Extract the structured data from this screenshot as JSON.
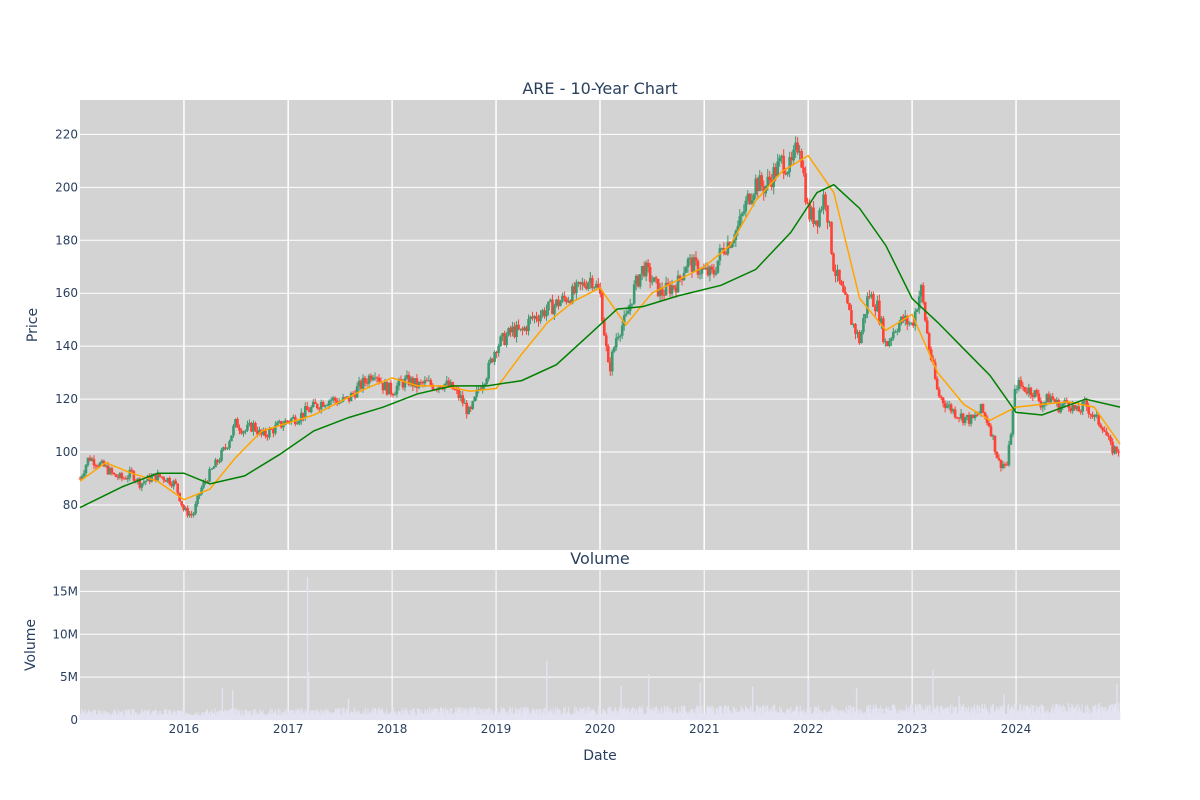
{
  "chart_data": [
    {
      "type": "candlestick",
      "title": "ARE - 10-Year Chart",
      "ylabel": "Price",
      "ylim": [
        63,
        233
      ],
      "xlim": [
        "2015-01-01",
        "2024-12-31"
      ],
      "y_ticks": [
        80,
        100,
        120,
        140,
        160,
        180,
        200,
        220
      ],
      "x_ticks": [
        "2016",
        "2017",
        "2018",
        "2019",
        "2020",
        "2021",
        "2022",
        "2023",
        "2024"
      ],
      "grid": true,
      "colors": {
        "up": "#3d9970",
        "down": "#ff4136",
        "ma_short": "#ffa500",
        "ma_long": "#008000",
        "plot_bg": "#d3d3d3",
        "grid": "#ffffff"
      },
      "close_series": {
        "x": [
          "2015-01-01",
          "2015-02-01",
          "2015-03-01",
          "2015-04-01",
          "2015-05-01",
          "2015-06-01",
          "2015-07-01",
          "2015-08-01",
          "2015-09-01",
          "2015-10-01",
          "2015-11-01",
          "2015-12-01",
          "2016-01-01",
          "2016-02-01",
          "2016-03-01",
          "2016-04-01",
          "2016-05-01",
          "2016-06-01",
          "2016-07-01",
          "2016-08-01",
          "2016-09-01",
          "2016-10-01",
          "2016-11-01",
          "2016-12-01",
          "2017-01-01",
          "2017-02-01",
          "2017-03-01",
          "2017-04-01",
          "2017-05-01",
          "2017-06-01",
          "2017-07-01",
          "2017-08-01",
          "2017-09-01",
          "2017-10-01",
          "2017-11-01",
          "2017-12-01",
          "2018-01-01",
          "2018-02-01",
          "2018-03-01",
          "2018-04-01",
          "2018-05-01",
          "2018-06-01",
          "2018-07-01",
          "2018-08-01",
          "2018-09-01",
          "2018-10-01",
          "2018-11-01",
          "2018-12-01",
          "2019-01-01",
          "2019-02-01",
          "2019-03-01",
          "2019-04-01",
          "2019-05-01",
          "2019-06-01",
          "2019-07-01",
          "2019-08-01",
          "2019-09-01",
          "2019-10-01",
          "2019-11-01",
          "2019-12-01",
          "2020-01-01",
          "2020-02-01",
          "2020-03-01",
          "2020-04-01",
          "2020-05-01",
          "2020-06-01",
          "2020-07-01",
          "2020-08-01",
          "2020-09-01",
          "2020-10-01",
          "2020-11-01",
          "2020-12-01",
          "2021-01-01",
          "2021-02-01",
          "2021-03-01",
          "2021-04-01",
          "2021-05-01",
          "2021-06-01",
          "2021-07-01",
          "2021-08-01",
          "2021-09-01",
          "2021-10-01",
          "2021-11-01",
          "2021-12-01",
          "2022-01-01",
          "2022-02-01",
          "2022-03-01",
          "2022-04-01",
          "2022-05-01",
          "2022-06-01",
          "2022-07-01",
          "2022-08-01",
          "2022-09-01",
          "2022-10-01",
          "2022-11-01",
          "2022-12-01",
          "2023-01-01",
          "2023-02-01",
          "2023-03-01",
          "2023-04-01",
          "2023-05-01",
          "2023-06-01",
          "2023-07-01",
          "2023-08-01",
          "2023-09-01",
          "2023-10-01",
          "2023-11-01",
          "2023-12-01",
          "2024-01-01",
          "2024-02-01",
          "2024-03-01",
          "2024-04-01",
          "2024-05-01",
          "2024-06-01",
          "2024-07-01",
          "2024-08-01",
          "2024-09-01",
          "2024-10-01",
          "2024-11-01",
          "2024-12-01"
        ],
        "y": [
          90,
          98,
          96,
          94,
          91,
          90,
          92,
          88,
          90,
          91,
          90,
          88,
          78,
          76,
          86,
          92,
          97,
          103,
          111,
          108,
          110,
          106,
          108,
          110,
          112,
          113,
          115,
          117,
          119,
          120,
          119,
          120,
          124,
          127,
          131,
          125,
          123,
          126,
          127,
          125,
          126,
          125,
          126,
          124,
          120,
          114,
          124,
          130,
          140,
          143,
          146,
          145,
          150,
          152,
          154,
          156,
          158,
          160,
          163,
          166,
          160,
          130,
          145,
          150,
          162,
          170,
          165,
          160,
          162,
          164,
          172,
          170,
          168,
          167,
          176,
          180,
          185,
          195,
          202,
          200,
          205,
          210,
          207,
          218,
          190,
          188,
          198,
          170,
          160,
          150,
          142,
          160,
          155,
          140,
          147,
          150,
          148,
          162,
          140,
          122,
          118,
          115,
          113,
          112,
          116,
          110,
          96,
          95,
          126,
          124,
          123,
          118,
          121,
          117,
          119,
          115,
          118,
          113,
          110,
          101
        ]
      },
      "series": [
        {
          "name": "MA short",
          "x": [
            "2015-01-01",
            "2015-04-01",
            "2015-07-01",
            "2015-10-01",
            "2016-01-01",
            "2016-04-01",
            "2016-07-01",
            "2016-10-01",
            "2017-01-01",
            "2017-04-01",
            "2017-07-01",
            "2017-10-01",
            "2018-01-01",
            "2018-04-01",
            "2018-07-01",
            "2018-10-01",
            "2019-01-01",
            "2019-04-01",
            "2019-07-01",
            "2019-10-01",
            "2020-01-01",
            "2020-04-01",
            "2020-07-01",
            "2020-10-01",
            "2021-01-01",
            "2021-04-01",
            "2021-07-01",
            "2021-10-01",
            "2022-01-01",
            "2022-04-01",
            "2022-07-01",
            "2022-10-01",
            "2023-01-01",
            "2023-04-01",
            "2023-07-01",
            "2023-10-01",
            "2024-01-01",
            "2024-04-01",
            "2024-07-01",
            "2024-10-01",
            "2024-12-31"
          ],
          "y": [
            89,
            96,
            92,
            89,
            82,
            86,
            98,
            108,
            111,
            114,
            119,
            124,
            128,
            125,
            125,
            123,
            124,
            137,
            149,
            157,
            162,
            148,
            160,
            165,
            170,
            178,
            195,
            206,
            212,
            198,
            158,
            146,
            152,
            130,
            118,
            112,
            117,
            118,
            119,
            117,
            103
          ]
        },
        {
          "name": "MA long",
          "x": [
            "2015-01-01",
            "2015-06-01",
            "2015-10-01",
            "2016-01-01",
            "2016-04-01",
            "2016-08-01",
            "2016-12-01",
            "2017-04-01",
            "2017-08-01",
            "2017-12-01",
            "2018-04-01",
            "2018-08-01",
            "2018-12-01",
            "2019-04-01",
            "2019-08-01",
            "2019-12-01",
            "2020-03-01",
            "2020-06-01",
            "2020-10-01",
            "2021-03-01",
            "2021-07-01",
            "2021-11-01",
            "2022-02-01",
            "2022-04-01",
            "2022-07-01",
            "2022-10-01",
            "2023-01-01",
            "2023-04-01",
            "2023-07-01",
            "2023-10-01",
            "2024-01-01",
            "2024-04-01",
            "2024-09-01",
            "2024-12-31"
          ],
          "y": [
            79,
            87,
            92,
            92,
            88,
            91,
            99,
            108,
            113,
            117,
            122,
            125,
            125,
            127,
            133,
            145,
            154,
            155,
            159,
            163,
            169,
            183,
            198,
            201,
            192,
            178,
            158,
            149,
            139,
            129,
            115,
            114,
            120,
            117
          ]
        }
      ]
    },
    {
      "type": "bar",
      "title": "Volume",
      "xlabel": "Date",
      "ylabel": "Volume",
      "ylim": [
        0,
        17.5
      ],
      "unit": "M",
      "y_ticks": [
        0,
        5,
        10,
        15
      ],
      "y_tick_labels": [
        "0",
        "5M",
        "10M",
        "15M"
      ],
      "bar_color": "#e3e3f2",
      "baseline_volume_m": 0.9,
      "spikes": [
        {
          "x": "2016-05-15",
          "value": 3.7
        },
        {
          "x": "2016-06-20",
          "value": 3.5
        },
        {
          "x": "2017-03-10",
          "value": 16.7
        },
        {
          "x": "2017-03-14",
          "value": 5.6
        },
        {
          "x": "2017-08-01",
          "value": 2.5
        },
        {
          "x": "2019-06-28",
          "value": 6.9
        },
        {
          "x": "2020-03-15",
          "value": 4.0
        },
        {
          "x": "2020-06-20",
          "value": 5.3
        },
        {
          "x": "2020-12-18",
          "value": 4.3
        },
        {
          "x": "2021-06-20",
          "value": 3.9
        },
        {
          "x": "2022-01-03",
          "value": 4.6
        },
        {
          "x": "2022-06-20",
          "value": 3.7
        },
        {
          "x": "2023-03-15",
          "value": 5.8
        },
        {
          "x": "2023-06-15",
          "value": 2.8
        },
        {
          "x": "2023-11-20",
          "value": 3.0
        },
        {
          "x": "2024-12-20",
          "value": 4.2
        }
      ]
    }
  ]
}
